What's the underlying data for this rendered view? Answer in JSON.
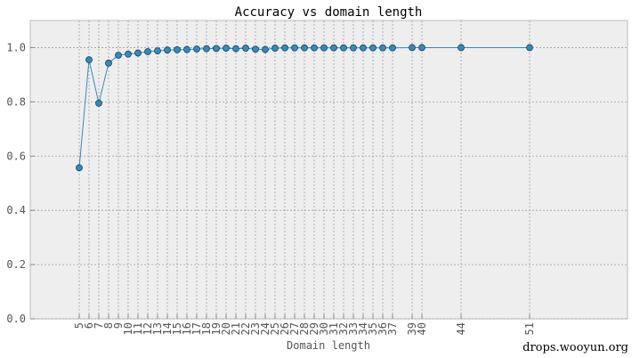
{
  "watermark": "drops.wooyun.org",
  "chart_data": {
    "type": "line",
    "title": "Accuracy vs domain length",
    "xlabel": "Domain length",
    "ylabel": "",
    "xlim": [
      0,
      61
    ],
    "ylim": [
      0.0,
      1.1
    ],
    "y_ticks": [
      "0.0",
      "0.2",
      "0.4",
      "0.6",
      "0.8",
      "1.0"
    ],
    "x_ticks": [
      5,
      6,
      7,
      8,
      9,
      10,
      11,
      12,
      13,
      14,
      15,
      16,
      17,
      18,
      19,
      20,
      21,
      22,
      23,
      24,
      25,
      26,
      27,
      28,
      29,
      30,
      31,
      32,
      33,
      34,
      35,
      36,
      37,
      39,
      40,
      44,
      51
    ],
    "grid": true,
    "legend": "none",
    "series": [
      {
        "color": "#348abd",
        "x": [
          5,
          6,
          7,
          8,
          9,
          10,
          11,
          12,
          13,
          14,
          15,
          16,
          17,
          18,
          19,
          20,
          21,
          22,
          23,
          24,
          25,
          26,
          27,
          28,
          29,
          30,
          31,
          32,
          33,
          34,
          35,
          36,
          37,
          39,
          40,
          44,
          51
        ],
        "y": [
          0.557,
          0.955,
          0.795,
          0.943,
          0.972,
          0.976,
          0.98,
          0.985,
          0.988,
          0.991,
          0.992,
          0.993,
          0.995,
          0.996,
          0.997,
          0.998,
          0.996,
          0.998,
          0.994,
          0.993,
          0.998,
          0.999,
          0.999,
          0.999,
          0.999,
          0.999,
          0.999,
          0.999,
          0.999,
          0.999,
          0.999,
          0.999,
          0.999,
          1.0,
          1.0,
          1.0,
          1.0
        ]
      }
    ]
  }
}
